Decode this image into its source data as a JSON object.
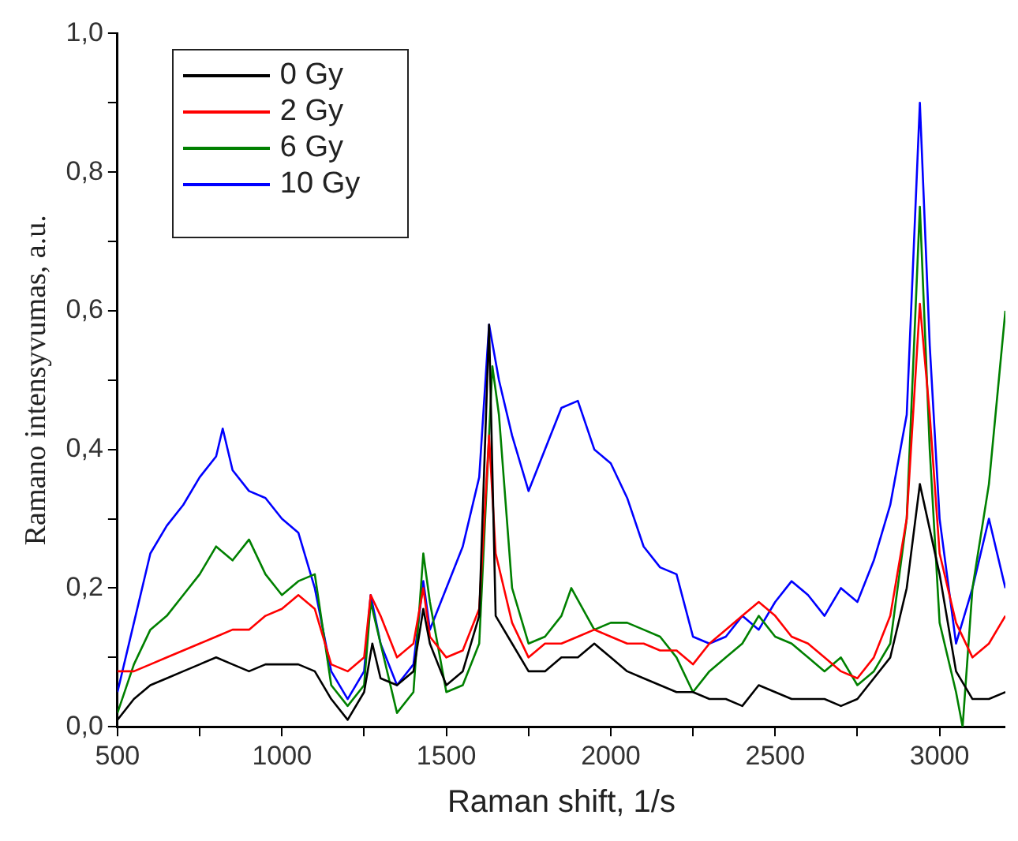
{
  "chart_data": {
    "type": "line",
    "xlabel": "Raman shift, 1/s",
    "ylabel": "Ramano intensyvumas, a.u.",
    "xlim": [
      500,
      3200
    ],
    "xticks": [
      500,
      {
        "value": 750,
        "label": null
      },
      1000,
      {
        "value": 1250,
        "label": null
      },
      1500,
      {
        "value": 1750,
        "label": null
      },
      2000,
      {
        "value": 2250,
        "label": null
      },
      2500,
      {
        "value": 2750,
        "label": null
      },
      3000
    ],
    "ylim": [
      0,
      1
    ],
    "yticks": [
      {
        "value": 0,
        "label": "0,0"
      },
      {
        "value": 0.1,
        "label": null
      },
      {
        "value": 0.2,
        "label": "0,2"
      },
      {
        "value": 0.3,
        "label": null
      },
      {
        "value": 0.4,
        "label": "0,4"
      },
      {
        "value": 0.5,
        "label": null
      },
      {
        "value": 0.6,
        "label": "0,6"
      },
      {
        "value": 0.7,
        "label": null
      },
      {
        "value": 0.8,
        "label": "0,8"
      },
      {
        "value": 0.9,
        "label": null
      },
      {
        "value": 1,
        "label": "1,0"
      }
    ],
    "grid": false,
    "legend": "top left",
    "marker": "none",
    "line_style": "solid",
    "series": [
      {
        "name": "0 Gy",
        "color": "#000000",
        "x": [
          500,
          550,
          600,
          650,
          700,
          750,
          800,
          850,
          900,
          950,
          1000,
          1050,
          1100,
          1150,
          1200,
          1250,
          1275,
          1300,
          1350,
          1400,
          1430,
          1450,
          1500,
          1550,
          1600,
          1630,
          1650,
          1700,
          1750,
          1800,
          1850,
          1900,
          1950,
          2000,
          2050,
          2100,
          2150,
          2200,
          2250,
          2300,
          2350,
          2400,
          2450,
          2500,
          2550,
          2600,
          2650,
          2700,
          2750,
          2800,
          2850,
          2900,
          2940,
          3000,
          3050,
          3100,
          3150,
          3200
        ],
        "values": [
          0.01,
          0.04,
          0.06,
          0.07,
          0.08,
          0.09,
          0.1,
          0.09,
          0.08,
          0.09,
          0.09,
          0.09,
          0.08,
          0.04,
          0.01,
          0.05,
          0.12,
          0.07,
          0.06,
          0.08,
          0.17,
          0.12,
          0.06,
          0.08,
          0.16,
          0.58,
          0.16,
          0.12,
          0.08,
          0.08,
          0.1,
          0.1,
          0.12,
          0.1,
          0.08,
          0.07,
          0.06,
          0.05,
          0.05,
          0.04,
          0.04,
          0.03,
          0.06,
          0.05,
          0.04,
          0.04,
          0.04,
          0.03,
          0.04,
          0.07,
          0.1,
          0.2,
          0.35,
          0.22,
          0.08,
          0.04,
          0.04,
          0.05
        ]
      },
      {
        "name": "2 Gy",
        "color": "#ff0000",
        "x": [
          500,
          550,
          600,
          650,
          700,
          750,
          800,
          850,
          900,
          950,
          1000,
          1050,
          1100,
          1150,
          1200,
          1250,
          1270,
          1300,
          1350,
          1400,
          1430,
          1450,
          1500,
          1550,
          1600,
          1630,
          1650,
          1700,
          1750,
          1800,
          1850,
          1900,
          1950,
          2000,
          2050,
          2100,
          2150,
          2200,
          2250,
          2300,
          2350,
          2400,
          2450,
          2500,
          2550,
          2600,
          2650,
          2700,
          2750,
          2800,
          2850,
          2900,
          2940,
          2970,
          3000,
          3050,
          3100,
          3150,
          3200
        ],
        "values": [
          0.08,
          0.08,
          0.09,
          0.1,
          0.11,
          0.12,
          0.13,
          0.14,
          0.14,
          0.16,
          0.17,
          0.19,
          0.17,
          0.09,
          0.08,
          0.1,
          0.19,
          0.16,
          0.1,
          0.12,
          0.2,
          0.13,
          0.1,
          0.11,
          0.17,
          0.42,
          0.25,
          0.15,
          0.1,
          0.12,
          0.12,
          0.13,
          0.14,
          0.13,
          0.12,
          0.12,
          0.11,
          0.11,
          0.09,
          0.12,
          0.14,
          0.16,
          0.18,
          0.16,
          0.13,
          0.12,
          0.1,
          0.08,
          0.07,
          0.1,
          0.16,
          0.3,
          0.61,
          0.45,
          0.25,
          0.15,
          0.1,
          0.12,
          0.16
        ]
      },
      {
        "name": "6 Gy",
        "color": "#008000",
        "x": [
          500,
          550,
          600,
          650,
          700,
          750,
          800,
          850,
          900,
          950,
          1000,
          1050,
          1100,
          1150,
          1200,
          1250,
          1270,
          1300,
          1350,
          1400,
          1430,
          1450,
          1500,
          1550,
          1600,
          1640,
          1660,
          1700,
          1750,
          1800,
          1850,
          1880,
          1950,
          2000,
          2050,
          2100,
          2150,
          2200,
          2250,
          2300,
          2350,
          2400,
          2450,
          2500,
          2550,
          2600,
          2650,
          2700,
          2750,
          2800,
          2850,
          2900,
          2940,
          2970,
          3000,
          3050,
          3070,
          3100,
          3150,
          3200
        ],
        "values": [
          0.02,
          0.09,
          0.14,
          0.16,
          0.19,
          0.22,
          0.26,
          0.24,
          0.27,
          0.22,
          0.19,
          0.21,
          0.22,
          0.06,
          0.03,
          0.06,
          0.18,
          0.12,
          0.02,
          0.05,
          0.25,
          0.18,
          0.05,
          0.06,
          0.12,
          0.52,
          0.45,
          0.2,
          0.12,
          0.13,
          0.16,
          0.2,
          0.14,
          0.15,
          0.15,
          0.14,
          0.13,
          0.1,
          0.05,
          0.08,
          0.1,
          0.12,
          0.16,
          0.13,
          0.12,
          0.1,
          0.08,
          0.1,
          0.06,
          0.08,
          0.12,
          0.3,
          0.75,
          0.4,
          0.15,
          0.05,
          0,
          0.2,
          0.35,
          0.6
        ]
      },
      {
        "name": "10 Gy",
        "color": "#0000ff",
        "x": [
          500,
          550,
          600,
          650,
          700,
          750,
          800,
          820,
          850,
          900,
          950,
          1000,
          1050,
          1100,
          1150,
          1200,
          1250,
          1270,
          1300,
          1350,
          1400,
          1430,
          1450,
          1500,
          1550,
          1600,
          1630,
          1660,
          1700,
          1750,
          1800,
          1850,
          1900,
          1950,
          2000,
          2050,
          2100,
          2150,
          2200,
          2250,
          2300,
          2350,
          2400,
          2450,
          2500,
          2550,
          2600,
          2650,
          2700,
          2750,
          2800,
          2850,
          2900,
          2940,
          2970,
          3000,
          3050,
          3100,
          3150,
          3200
        ],
        "values": [
          0.05,
          0.15,
          0.25,
          0.29,
          0.32,
          0.36,
          0.39,
          0.43,
          0.37,
          0.34,
          0.33,
          0.3,
          0.28,
          0.2,
          0.08,
          0.04,
          0.08,
          0.19,
          0.12,
          0.06,
          0.09,
          0.21,
          0.14,
          0.2,
          0.26,
          0.36,
          0.58,
          0.5,
          0.42,
          0.34,
          0.4,
          0.46,
          0.47,
          0.4,
          0.38,
          0.33,
          0.26,
          0.23,
          0.22,
          0.13,
          0.12,
          0.13,
          0.16,
          0.14,
          0.18,
          0.21,
          0.19,
          0.16,
          0.2,
          0.18,
          0.24,
          0.32,
          0.45,
          0.9,
          0.55,
          0.3,
          0.12,
          0.2,
          0.3,
          0.2
        ]
      }
    ]
  }
}
